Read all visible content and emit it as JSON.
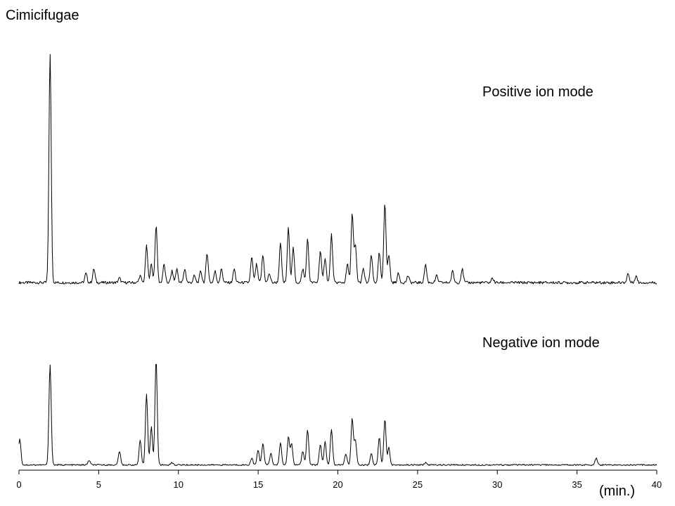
{
  "chart_data": {
    "type": "line",
    "title": "Cimicifugae",
    "xlabel": "(min.)",
    "ylabel": "",
    "xlim": [
      0,
      40
    ],
    "x_ticks": [
      0,
      5,
      10,
      15,
      20,
      25,
      30,
      35,
      40
    ],
    "x_tick_labels": [
      "0",
      "5",
      "10",
      "15",
      "20",
      "25",
      "30",
      "35",
      "40"
    ],
    "grid": false,
    "series": [
      {
        "name": "Positive ion mode",
        "baseline": 1.5,
        "peaks": [
          [
            1.95,
            100
          ],
          [
            4.2,
            4
          ],
          [
            4.7,
            6
          ],
          [
            6.3,
            2
          ],
          [
            7.6,
            3
          ],
          [
            8.0,
            16
          ],
          [
            8.3,
            8
          ],
          [
            8.6,
            25
          ],
          [
            9.1,
            8
          ],
          [
            9.6,
            5
          ],
          [
            9.9,
            6
          ],
          [
            10.4,
            6
          ],
          [
            11.0,
            3
          ],
          [
            11.4,
            5
          ],
          [
            11.8,
            13
          ],
          [
            12.3,
            5
          ],
          [
            12.7,
            6
          ],
          [
            13.5,
            6
          ],
          [
            14.6,
            11
          ],
          [
            14.9,
            8
          ],
          [
            15.3,
            12
          ],
          [
            15.7,
            4
          ],
          [
            16.4,
            17
          ],
          [
            16.9,
            24
          ],
          [
            17.2,
            15
          ],
          [
            17.8,
            6
          ],
          [
            18.1,
            19
          ],
          [
            18.9,
            14
          ],
          [
            19.2,
            11
          ],
          [
            19.6,
            21
          ],
          [
            20.6,
            8
          ],
          [
            20.9,
            30
          ],
          [
            21.1,
            16
          ],
          [
            21.6,
            6
          ],
          [
            22.1,
            12
          ],
          [
            22.6,
            13
          ],
          [
            22.95,
            35
          ],
          [
            23.2,
            12
          ],
          [
            23.8,
            4
          ],
          [
            24.4,
            3
          ],
          [
            25.5,
            8
          ],
          [
            26.2,
            3
          ],
          [
            27.2,
            5
          ],
          [
            27.8,
            6
          ],
          [
            29.7,
            2
          ],
          [
            38.2,
            4
          ],
          [
            38.7,
            3
          ]
        ]
      },
      {
        "name": "Negative ion mode",
        "baseline": 1.5,
        "peaks": [
          [
            0.05,
            23
          ],
          [
            1.95,
            87
          ],
          [
            4.4,
            4
          ],
          [
            6.3,
            12
          ],
          [
            7.6,
            21
          ],
          [
            8.0,
            62
          ],
          [
            8.3,
            33
          ],
          [
            8.6,
            92
          ],
          [
            9.6,
            2
          ],
          [
            14.6,
            6
          ],
          [
            15.0,
            13
          ],
          [
            15.3,
            19
          ],
          [
            15.8,
            10
          ],
          [
            16.4,
            19
          ],
          [
            16.9,
            24
          ],
          [
            17.1,
            18
          ],
          [
            17.8,
            12
          ],
          [
            18.1,
            31
          ],
          [
            18.9,
            18
          ],
          [
            19.2,
            20
          ],
          [
            19.6,
            31
          ],
          [
            20.5,
            10
          ],
          [
            20.9,
            40
          ],
          [
            21.1,
            22
          ],
          [
            22.1,
            10
          ],
          [
            22.6,
            24
          ],
          [
            22.95,
            40
          ],
          [
            23.2,
            15
          ],
          [
            25.5,
            2
          ],
          [
            36.2,
            6
          ]
        ]
      }
    ]
  }
}
